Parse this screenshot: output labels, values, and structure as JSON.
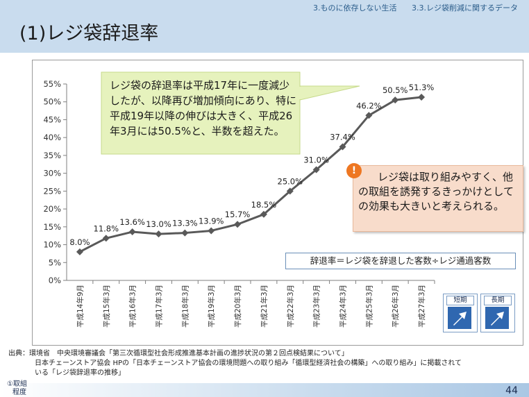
{
  "header": {
    "breadcrumb": [
      "3.ものに依存しない生活",
      "3.3.レジ袋削減に関するデータ"
    ],
    "title": "(1)レジ袋辞退率"
  },
  "chart_data": {
    "type": "line",
    "categories": [
      "平成14年9月",
      "平成15年3月",
      "平成16年3月",
      "平成17年3月",
      "平成18年3月",
      "平成19年3月",
      "平成20年3月",
      "平成21年3月",
      "平成22年3月",
      "平成23年3月",
      "平成24年3月",
      "平成25年3月",
      "平成26年3月",
      "平成27年3月"
    ],
    "values": [
      8.0,
      11.8,
      13.6,
      13.0,
      13.3,
      13.9,
      15.7,
      18.5,
      25.0,
      31.0,
      37.4,
      46.2,
      50.5,
      51.3
    ],
    "data_labels": [
      "8.0%",
      "11.8%",
      "13.6%",
      "13.0%",
      "13.3%",
      "13.9%",
      "15.7%",
      "18.5%",
      "25.0%",
      "31.0%",
      "37.4%",
      "46.2%",
      "50.5%",
      "51.3%"
    ],
    "yticks": [
      "0%",
      "5%",
      "10%",
      "15%",
      "20%",
      "25%",
      "30%",
      "35%",
      "40%",
      "45%",
      "50%",
      "55%"
    ],
    "ylim": [
      0,
      55
    ],
    "title": "",
    "xlabel": "",
    "ylabel": "",
    "grid": false,
    "line_color": "#595959"
  },
  "callouts": {
    "green": "レジ袋の辞退率は平成17年に一度減少したが、以降再び増加傾向にあり、特に平成19年以降の伸びは大きく、平成26年3月には50.5%と、半数を超えた。",
    "orange": "レジ袋は取り組みやすく、他の取組を誘発するきっかけとしての効果も大きいと考えられる。",
    "warn_icon": "!",
    "formula": "辞退率＝レジ袋を辞退した客数÷レジ通過客数"
  },
  "terms": {
    "short": "短期",
    "long": "長期"
  },
  "source": {
    "line1": "出典：環境省　中央環境審議会「第三次循環型社会形成推進基本計画の進捗状況の第２回点検結果について」",
    "line2": "日本チェーンストア協会 HPの「日本チェーンストア協会の環境問題への取り組み「循環型経済社会の構築」への取り組み」に掲載されて",
    "line3": "いる「レジ袋辞退率の推移」"
  },
  "footer": {
    "left_line1": "①取組",
    "left_line2": "程度",
    "page_number": "44"
  },
  "colors": {
    "header_bg": "#c9dcee",
    "green_callout": "#e6f2bd",
    "orange_callout": "#f8dccb",
    "accent_blue": "#2f67b0"
  }
}
